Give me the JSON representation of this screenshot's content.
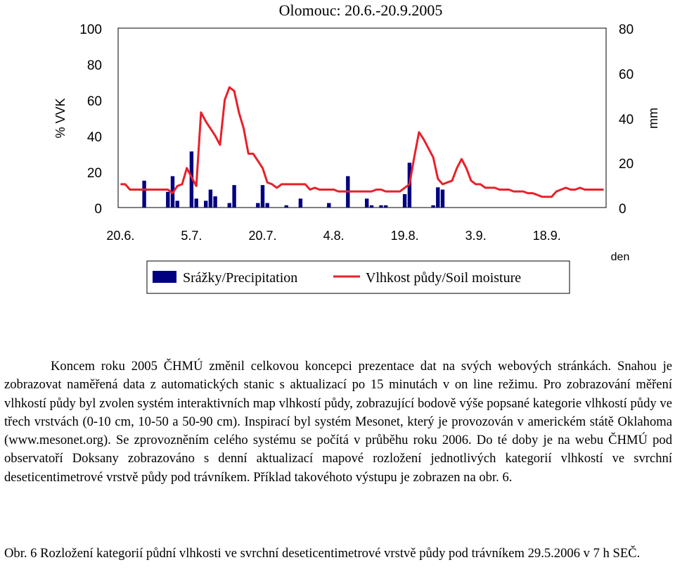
{
  "chart_data": {
    "type": "bar+line",
    "title": "Olomouc: 20.6.-20.9.2005",
    "xlabel": "den",
    "ylabel_left": "% VVK",
    "ylabel_right": "mm",
    "y_left_ticks": [
      "100",
      "80",
      "60",
      "40",
      "20",
      "0"
    ],
    "y_right_ticks": [
      "80",
      "60",
      "40",
      "20",
      "0"
    ],
    "ylim_left": [
      0,
      100
    ],
    "ylim_right": [
      0,
      80
    ],
    "x_ticks": [
      "20.6.",
      "5.7.",
      "20.7.",
      "4.8.",
      "19.8.",
      "3.9.",
      "18.9."
    ],
    "x_tick_day_index": [
      0,
      15,
      30,
      45,
      60,
      75,
      90
    ],
    "grid": false,
    "legend_position": "bottom",
    "series": [
      {
        "name": "Srážky/Precipitation",
        "kind": "bar",
        "axis": "right",
        "color": "#000080",
        "values": [
          0,
          0,
          0,
          0,
          0,
          12,
          0,
          0,
          0,
          0,
          7,
          14,
          3,
          0,
          0,
          25,
          4,
          0,
          3,
          8,
          5,
          0,
          0,
          2,
          10,
          0,
          0,
          0,
          0,
          2,
          10,
          2,
          0,
          0,
          0,
          1,
          0,
          0,
          4,
          0,
          0,
          0,
          0,
          0,
          2,
          0,
          0,
          0,
          14,
          0,
          0,
          0,
          4,
          1,
          0,
          1,
          1,
          0,
          0,
          0,
          6,
          20,
          0,
          0,
          0,
          0,
          1,
          9,
          8,
          0,
          0,
          0,
          0,
          0,
          0,
          0,
          0,
          0,
          0,
          0,
          0,
          0,
          0,
          0,
          0,
          0,
          0,
          0,
          0,
          0,
          0,
          0,
          0,
          0,
          0,
          0,
          0,
          0,
          0,
          0,
          0,
          0,
          0
        ]
      },
      {
        "name": "Vlhkost půdy/Soil moisture",
        "kind": "line",
        "axis": "left",
        "color": "#e8202a",
        "values": [
          13,
          13,
          10,
          10,
          10,
          10,
          10,
          10,
          10,
          10,
          10,
          8,
          12,
          13,
          22,
          17,
          12,
          53,
          48,
          44,
          40,
          35,
          60,
          67,
          65,
          53,
          44,
          30,
          30,
          26,
          22,
          14,
          13,
          11,
          13,
          13,
          13,
          13,
          13,
          13,
          10,
          11,
          10,
          10,
          10,
          10,
          9,
          9,
          9,
          9,
          9,
          9,
          9,
          9,
          10,
          10,
          9,
          9,
          9,
          9,
          11,
          13,
          28,
          42,
          38,
          33,
          28,
          16,
          13,
          14,
          15,
          22,
          27,
          22,
          15,
          13,
          13,
          11,
          11,
          11,
          10,
          10,
          10,
          9,
          9,
          9,
          8,
          8,
          7,
          6,
          6,
          6,
          9,
          10,
          11,
          10,
          10,
          11,
          10,
          10,
          10,
          10,
          10
        ]
      }
    ]
  },
  "body_paragraph": "Koncem roku 2005 ČHMÚ změnil celkovou koncepci prezentace dat na svých webových stránkách. Snahou je zobrazovat naměřená data z automatických stanic s aktualizací po 15 minutách v on line režimu. Pro zobrazování měření vlhkostí půdy byl zvolen systém interaktivních map vlhkostí půdy, zobrazující bodově výše popsané kategorie vlhkostí půdy ve třech vrstvách (0-10 cm, 10-50 a 50-90 cm). Inspirací byl systém Mesonet, který je provozován v americkém státě Oklahoma (www.mesonet.org). Se zprovozněním celého systému se počítá v průběhu roku 2006. Do té doby je na webu ČHMÚ pod observatoří Doksany zobrazováno s denní aktualizací mapové rozložení jednotlivých kategorií vlhkostí ve svrchní deseticentimetrové vrstvě půdy pod trávníkem. Příklad takovéhoto výstupu je zobrazen na obr. 6.",
  "caption": "Obr. 6 Rozložení kategorií půdní vlhkosti ve svrchní deseticentimetrové vrstvě půdy pod trávníkem 29.5.2006 v 7 h SEČ."
}
